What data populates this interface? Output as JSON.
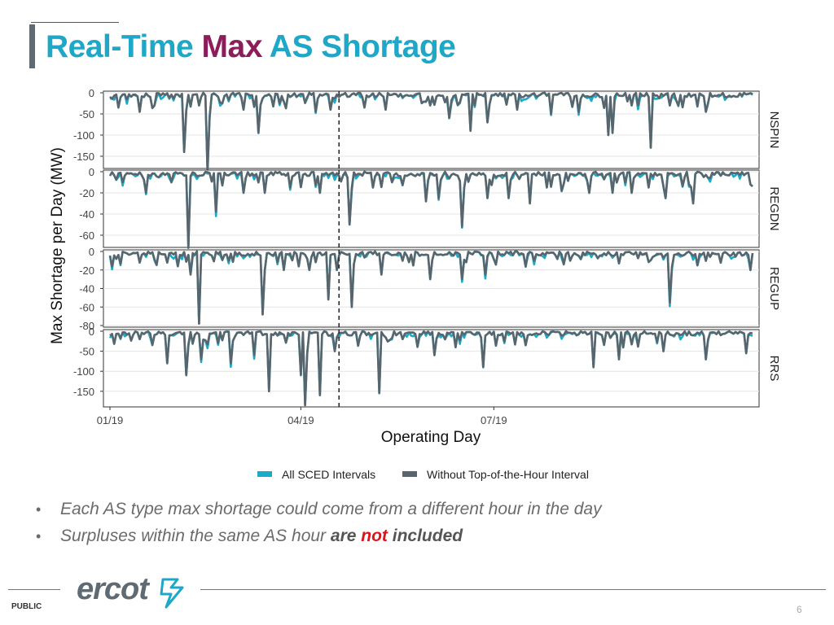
{
  "slide": {
    "title_part1": "Real-Time ",
    "title_part2": "Max",
    "title_part3": " AS Shortage",
    "footer_public": "PUBLIC",
    "page_number": "6",
    "logo_text": "ercot",
    "bullets": [
      {
        "text": "Each AS type max shortage could come from a different hour in the day"
      },
      {
        "pre": "Surpluses within the same AS hour ",
        "bold1": "are ",
        "red": "not",
        "bold2": " included"
      }
    ]
  },
  "colors": {
    "all_sced": "#1aabc9",
    "without_toh": "#59656d",
    "title_teal": "#1fa7c8",
    "title_purple": "#8b1d5a",
    "red": "#e0121b"
  },
  "chart_data": {
    "type": "line",
    "xlabel": "Operating Day",
    "ylabel": "Max Shortage per Day (MW)",
    "x_ticks": [
      "01/19",
      "04/19",
      "07/19"
    ],
    "x_range": [
      "2019-01-01",
      "2019-10-31"
    ],
    "vline_x": "2019-04-19",
    "legend": {
      "position": "bottom",
      "entries": [
        "All SCED Intervals",
        "Without Top-of-the-Hour Interval"
      ]
    },
    "series_names": [
      "All SCED Intervals",
      "Without Top-of-the-Hour Interval"
    ],
    "panels": [
      {
        "name": "NSPIN",
        "ylim": [
          -175,
          0
        ],
        "yticks": [
          0,
          -50,
          -100,
          -150
        ],
        "spikes": [
          {
            "x": "2019-01-05",
            "y": -35
          },
          {
            "x": "2019-01-15",
            "y": -45
          },
          {
            "x": "2019-01-22",
            "y": -30
          },
          {
            "x": "2019-02-05",
            "y": -140
          },
          {
            "x": "2019-02-12",
            "y": -30
          },
          {
            "x": "2019-02-16",
            "y": -190
          },
          {
            "x": "2019-02-23",
            "y": -25
          },
          {
            "x": "2019-03-05",
            "y": -40
          },
          {
            "x": "2019-03-12",
            "y": -95
          },
          {
            "x": "2019-03-22",
            "y": -25
          },
          {
            "x": "2019-04-08",
            "y": -45
          },
          {
            "x": "2019-04-15",
            "y": -40
          },
          {
            "x": "2019-05-01",
            "y": -35
          },
          {
            "x": "2019-05-11",
            "y": -40
          },
          {
            "x": "2019-06-01",
            "y": -30
          },
          {
            "x": "2019-06-10",
            "y": -60
          },
          {
            "x": "2019-06-20",
            "y": -90
          },
          {
            "x": "2019-06-28",
            "y": -70
          },
          {
            "x": "2019-07-12",
            "y": -40
          },
          {
            "x": "2019-07-28",
            "y": -50
          },
          {
            "x": "2019-08-10",
            "y": -45
          },
          {
            "x": "2019-08-24",
            "y": -100
          },
          {
            "x": "2019-08-26",
            "y": -95
          },
          {
            "x": "2019-09-04",
            "y": -30
          },
          {
            "x": "2019-09-13",
            "y": -130
          },
          {
            "x": "2019-09-26",
            "y": -30
          },
          {
            "x": "2019-10-09",
            "y": -45
          },
          {
            "x": "2019-10-18",
            "y": -10
          }
        ]
      },
      {
        "name": "REGDN",
        "ylim": [
          -70,
          0
        ],
        "yticks": [
          0,
          -20,
          -40,
          -60
        ],
        "spikes": [
          {
            "x": "2019-01-07",
            "y": -10
          },
          {
            "x": "2019-01-18",
            "y": -20
          },
          {
            "x": "2019-01-30",
            "y": -10
          },
          {
            "x": "2019-02-07",
            "y": -72
          },
          {
            "x": "2019-02-20",
            "y": -38
          },
          {
            "x": "2019-03-05",
            "y": -20
          },
          {
            "x": "2019-03-15",
            "y": -20
          },
          {
            "x": "2019-03-27",
            "y": -15
          },
          {
            "x": "2019-04-10",
            "y": -20
          },
          {
            "x": "2019-04-24",
            "y": -50
          },
          {
            "x": "2019-05-05",
            "y": -15
          },
          {
            "x": "2019-05-14",
            "y": -10
          },
          {
            "x": "2019-05-30",
            "y": -28
          },
          {
            "x": "2019-06-05",
            "y": -25
          },
          {
            "x": "2019-06-16",
            "y": -52
          },
          {
            "x": "2019-06-28",
            "y": -25
          },
          {
            "x": "2019-07-08",
            "y": -25
          },
          {
            "x": "2019-07-18",
            "y": -30
          },
          {
            "x": "2019-08-02",
            "y": -18
          },
          {
            "x": "2019-08-15",
            "y": -20
          },
          {
            "x": "2019-08-26",
            "y": -20
          },
          {
            "x": "2019-09-04",
            "y": -20
          },
          {
            "x": "2019-09-20",
            "y": -25
          },
          {
            "x": "2019-10-03",
            "y": -30
          }
        ]
      },
      {
        "name": "REGUP",
        "ylim": [
          -80,
          0
        ],
        "yticks": [
          0,
          -20,
          -40,
          -60,
          -80
        ],
        "spikes": [
          {
            "x": "2019-01-04",
            "y": -8
          },
          {
            "x": "2019-01-15",
            "y": -12
          },
          {
            "x": "2019-01-28",
            "y": -12
          },
          {
            "x": "2019-02-08",
            "y": -25
          },
          {
            "x": "2019-02-12",
            "y": -78
          },
          {
            "x": "2019-02-26",
            "y": -10
          },
          {
            "x": "2019-03-14",
            "y": -68
          },
          {
            "x": "2019-03-24",
            "y": -20
          },
          {
            "x": "2019-04-05",
            "y": -20
          },
          {
            "x": "2019-04-14",
            "y": -52
          },
          {
            "x": "2019-04-18",
            "y": -20
          },
          {
            "x": "2019-04-25",
            "y": -60
          },
          {
            "x": "2019-05-09",
            "y": -25
          },
          {
            "x": "2019-05-19",
            "y": -10
          },
          {
            "x": "2019-06-01",
            "y": -30
          },
          {
            "x": "2019-06-16",
            "y": -30
          },
          {
            "x": "2019-06-27",
            "y": -25
          },
          {
            "x": "2019-07-20",
            "y": -10
          },
          {
            "x": "2019-08-06",
            "y": -10
          },
          {
            "x": "2019-09-22",
            "y": -55
          },
          {
            "x": "2019-10-05",
            "y": -15
          },
          {
            "x": "2019-10-30",
            "y": -20
          }
        ]
      },
      {
        "name": "RRS",
        "ylim": [
          -185,
          0
        ],
        "yticks": [
          0,
          -50,
          -100,
          -150
        ],
        "spikes": [
          {
            "x": "2019-01-15",
            "y": -20
          },
          {
            "x": "2019-01-28",
            "y": -80
          },
          {
            "x": "2019-02-06",
            "y": -110
          },
          {
            "x": "2019-02-13",
            "y": -70
          },
          {
            "x": "2019-02-27",
            "y": -80
          },
          {
            "x": "2019-03-10",
            "y": -60
          },
          {
            "x": "2019-03-17",
            "y": -150
          },
          {
            "x": "2019-04-01",
            "y": -110
          },
          {
            "x": "2019-04-03",
            "y": -185
          },
          {
            "x": "2019-04-10",
            "y": -160
          },
          {
            "x": "2019-04-17",
            "y": -50
          },
          {
            "x": "2019-05-08",
            "y": -155
          },
          {
            "x": "2019-05-19",
            "y": -20
          },
          {
            "x": "2019-06-03",
            "y": -60
          },
          {
            "x": "2019-06-13",
            "y": -40
          },
          {
            "x": "2019-06-26",
            "y": -90
          },
          {
            "x": "2019-07-16",
            "y": -35
          },
          {
            "x": "2019-08-17",
            "y": -90
          },
          {
            "x": "2019-08-29",
            "y": -70
          },
          {
            "x": "2019-09-19",
            "y": -50
          },
          {
            "x": "2019-10-09",
            "y": -70
          },
          {
            "x": "2019-10-28",
            "y": -55
          }
        ]
      }
    ]
  }
}
